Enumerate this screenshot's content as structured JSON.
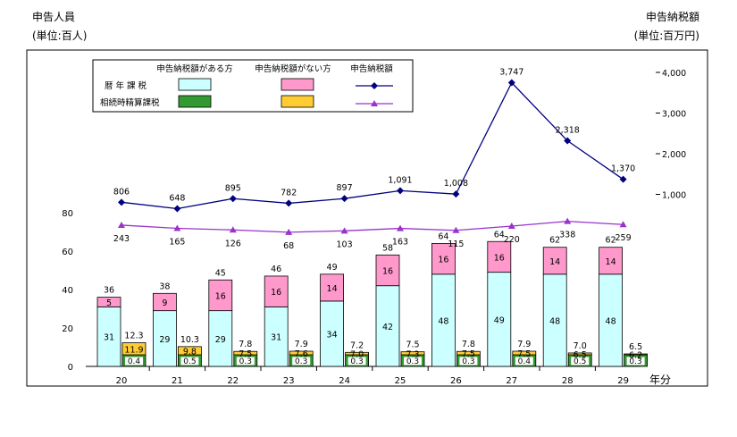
{
  "chart_data": {
    "type": "bar",
    "categories": [
      "20",
      "21",
      "22",
      "23",
      "24",
      "25",
      "26",
      "27",
      "28",
      "29"
    ],
    "xlabel": "年分",
    "left_axis": {
      "title_line1": "申告人員",
      "title_line2": "(単位:百人)",
      "ylim": [
        0,
        80
      ],
      "ticks": [
        "0",
        "20",
        "40",
        "60",
        "80"
      ]
    },
    "right_axis": {
      "title_line1": "申告納税額",
      "title_line2": "(単位:百万円)",
      "ylim": [
        0,
        4000
      ],
      "ticks": [
        "1,000",
        "2,000",
        "3,000",
        "4,000"
      ]
    },
    "legend": {
      "col_with_tax": "申告納税額がある方",
      "col_without_tax": "申告納税額がない方",
      "col_tax_amount": "申告納税額",
      "row_calendar": "暦 年 課 税",
      "row_settlement": "相続時精算課税"
    },
    "colors": {
      "calendar_with_tax": "#ccffff",
      "calendar_without_tax": "#ff99cc",
      "settlement_with_tax": "#339933",
      "settlement_without_tax": "#ffcc33",
      "calendar_tax_line": "#000080",
      "settlement_tax_line": "#9933cc"
    },
    "series": [
      {
        "name": "暦年課税 申告納税額がある方",
        "values": [
          31,
          29,
          29,
          31,
          34,
          42,
          48,
          49,
          48,
          48
        ]
      },
      {
        "name": "暦年課税 申告納税額がない方",
        "values": [
          5,
          9,
          16,
          16,
          14,
          16,
          16,
          16,
          14,
          14
        ]
      },
      {
        "name": "相続時精算課税 申告納税額がある方",
        "values": [
          0.4,
          0.5,
          0.3,
          0.3,
          0.3,
          0.3,
          0.3,
          0.4,
          0.5,
          0.3
        ]
      },
      {
        "name": "相続時精算課税 申告納税額がない方",
        "values": [
          11.9,
          9.8,
          7.5,
          7.6,
          7.0,
          7.3,
          7.5,
          7.5,
          6.5,
          6.2
        ]
      },
      {
        "name": "暦年課税 申告納税額",
        "type": "line",
        "values": [
          806,
          648,
          895,
          782,
          897,
          1091,
          1008,
          3747,
          2318,
          1370
        ],
        "labels": [
          "806",
          "648",
          "895",
          "782",
          "897",
          "1,091",
          "1,008",
          "3,747",
          "2,318",
          "1,370"
        ]
      },
      {
        "name": "相続時精算課税 申告納税額",
        "type": "line",
        "values": [
          243,
          165,
          126,
          68,
          103,
          163,
          115,
          220,
          338,
          259
        ],
        "labels": [
          "243",
          "165",
          "126",
          "68",
          "103",
          "163",
          "115",
          "220",
          "338",
          "259"
        ]
      }
    ],
    "calendar_totals": [
      "36",
      "38",
      "45",
      "46",
      "49",
      "58",
      "64",
      "64",
      "62",
      "62"
    ],
    "settlement_totals": [
      "12.3",
      "10.3",
      "7.8",
      "7.9",
      "7.2",
      "7.5",
      "7.8",
      "7.9",
      "7.0",
      "6.5"
    ],
    "calendar_with_tax_labels": [
      "31",
      "29",
      "29",
      "31",
      "34",
      "42",
      "48",
      "49",
      "48",
      "48"
    ],
    "calendar_without_tax_labels": [
      "5",
      "9",
      "16",
      "16",
      "14",
      "16",
      "16",
      "16",
      "14",
      "14"
    ],
    "settlement_with_tax_labels": [
      "0.4",
      "0.5",
      "0.3",
      "0.3",
      "0.3",
      "0.3",
      "0.3",
      "0.4",
      "0.5",
      "0.3"
    ],
    "settlement_without_tax_labels": [
      "11.9",
      "9.8",
      "7.5",
      "7.6",
      "7.0",
      "7.3",
      "7.5",
      "7.5",
      "6.5",
      "6.2"
    ]
  }
}
